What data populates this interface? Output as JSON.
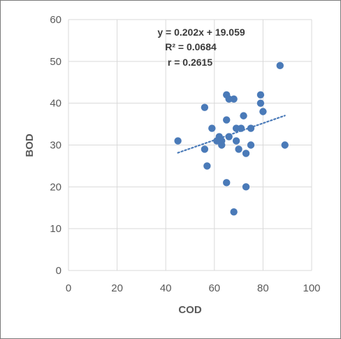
{
  "chart_data": {
    "type": "scatter",
    "xlabel": "COD",
    "ylabel": "BOD",
    "xlim": [
      0,
      100
    ],
    "ylim": [
      0,
      60
    ],
    "x_ticks": [
      0,
      20,
      40,
      60,
      80,
      100
    ],
    "y_ticks": [
      0,
      10,
      20,
      30,
      40,
      50,
      60
    ],
    "grid": true,
    "legend": "none",
    "marker_color": "#4a7ab8",
    "trendline": {
      "slope": 0.202,
      "intercept": 19.059,
      "x_range": [
        45,
        89
      ],
      "style": "dotted",
      "color": "#4a7ab8"
    },
    "annotations": [
      "y = 0.202x + 19.059",
      "R² = 0.0684",
      "r = 0.2615"
    ],
    "points": [
      [
        45,
        31
      ],
      [
        56,
        39
      ],
      [
        56,
        29
      ],
      [
        57,
        25
      ],
      [
        59,
        34
      ],
      [
        61,
        31
      ],
      [
        62,
        32
      ],
      [
        62,
        31
      ],
      [
        63,
        30
      ],
      [
        63,
        31
      ],
      [
        65,
        42
      ],
      [
        65,
        36
      ],
      [
        65,
        21
      ],
      [
        66,
        41
      ],
      [
        66,
        32
      ],
      [
        68,
        41
      ],
      [
        68,
        14
      ],
      [
        69,
        34
      ],
      [
        69,
        31
      ],
      [
        70,
        29
      ],
      [
        71,
        34
      ],
      [
        72,
        37
      ],
      [
        73,
        28
      ],
      [
        73,
        20
      ],
      [
        75,
        34
      ],
      [
        75,
        30
      ],
      [
        79,
        42
      ],
      [
        79,
        40
      ],
      [
        80,
        38
      ],
      [
        87,
        49
      ],
      [
        89,
        30
      ]
    ]
  }
}
